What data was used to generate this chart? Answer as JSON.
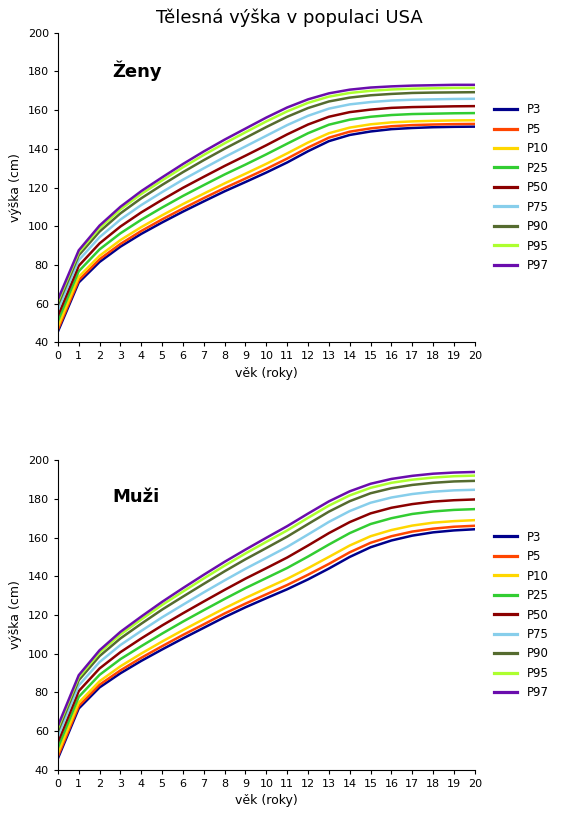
{
  "title": "Tělesná výška v populaci USA",
  "xlabel": "věk (roky)",
  "ylabel": "výška (cm)",
  "label_women": "Ženy",
  "label_men": "Muži",
  "percentile_labels": [
    "P3",
    "P5",
    "P10",
    "P25",
    "P50",
    "P75",
    "P90",
    "P95",
    "P97"
  ],
  "colors": [
    "#00008B",
    "#FF4500",
    "#FFD700",
    "#32CD32",
    "#8B0000",
    "#87CEEB",
    "#556B2F",
    "#ADFF2F",
    "#6A0DAD"
  ],
  "ylim": [
    40,
    200
  ],
  "yticks": [
    40,
    60,
    80,
    100,
    120,
    140,
    160,
    180,
    200
  ],
  "ages": [
    0,
    1,
    2,
    3,
    4,
    5,
    6,
    7,
    8,
    9,
    10,
    11,
    12,
    13,
    14,
    15,
    16,
    17,
    18,
    19,
    20
  ],
  "women_data": {
    "P3": [
      45.6,
      71.0,
      81.6,
      89.5,
      96.1,
      102.0,
      107.6,
      112.9,
      118.1,
      122.9,
      127.8,
      133.0,
      138.8,
      144.0,
      147.2,
      149.0,
      150.2,
      150.8,
      151.2,
      151.4,
      151.5
    ],
    "P5": [
      46.7,
      72.2,
      83.0,
      90.9,
      97.6,
      103.6,
      109.2,
      114.6,
      119.8,
      124.7,
      129.7,
      135.0,
      140.7,
      145.8,
      148.9,
      150.6,
      151.7,
      152.3,
      152.6,
      152.8,
      152.9
    ],
    "P10": [
      48.2,
      73.9,
      84.8,
      92.9,
      99.6,
      105.7,
      111.5,
      116.9,
      122.2,
      127.2,
      132.3,
      137.7,
      143.3,
      148.1,
      151.0,
      152.7,
      153.7,
      154.2,
      154.5,
      154.7,
      154.8
    ],
    "P25": [
      51.0,
      76.8,
      88.1,
      96.4,
      103.4,
      109.7,
      115.7,
      121.3,
      126.8,
      131.9,
      137.2,
      142.7,
      148.1,
      152.5,
      155.1,
      156.6,
      157.5,
      158.0,
      158.2,
      158.4,
      158.5
    ],
    "P50": [
      53.8,
      79.6,
      91.2,
      99.9,
      107.2,
      113.7,
      119.9,
      125.6,
      131.2,
      136.5,
      141.9,
      147.5,
      152.6,
      156.6,
      159.0,
      160.3,
      161.2,
      161.6,
      161.8,
      162.0,
      162.1
    ],
    "P75": [
      56.7,
      82.5,
      94.4,
      103.5,
      111.0,
      117.7,
      124.1,
      130.0,
      135.8,
      141.3,
      146.8,
      152.3,
      157.1,
      160.8,
      163.0,
      164.2,
      165.0,
      165.4,
      165.6,
      165.8,
      165.9
    ],
    "P90": [
      59.3,
      85.0,
      97.3,
      106.7,
      114.5,
      121.4,
      128.0,
      134.2,
      140.1,
      145.7,
      151.3,
      156.6,
      161.1,
      164.5,
      166.5,
      167.7,
      168.4,
      168.9,
      169.1,
      169.2,
      169.3
    ],
    "P95": [
      61.0,
      86.5,
      99.1,
      108.7,
      116.7,
      123.7,
      130.5,
      136.9,
      142.9,
      148.6,
      154.2,
      159.4,
      163.8,
      167.0,
      168.9,
      170.0,
      170.7,
      171.1,
      171.3,
      171.5,
      171.5
    ],
    "P97": [
      62.2,
      87.6,
      100.4,
      110.1,
      118.2,
      125.3,
      132.2,
      138.7,
      144.8,
      150.5,
      156.2,
      161.4,
      165.6,
      168.7,
      170.6,
      171.7,
      172.3,
      172.7,
      172.9,
      173.1,
      173.1
    ]
  },
  "men_data": {
    "P3": [
      45.9,
      71.7,
      82.6,
      89.9,
      96.3,
      102.2,
      107.9,
      113.4,
      118.9,
      124.0,
      128.7,
      133.3,
      138.4,
      144.0,
      150.0,
      155.0,
      158.5,
      161.0,
      162.7,
      163.7,
      164.3
    ],
    "P5": [
      47.0,
      73.0,
      84.0,
      91.4,
      97.9,
      103.9,
      109.7,
      115.2,
      120.8,
      125.9,
      130.7,
      135.5,
      140.8,
      146.4,
      152.4,
      157.3,
      160.7,
      163.1,
      164.6,
      165.6,
      166.1
    ],
    "P10": [
      48.6,
      74.7,
      85.8,
      93.5,
      100.1,
      106.3,
      112.2,
      117.9,
      123.5,
      128.8,
      133.8,
      138.7,
      144.2,
      150.0,
      155.9,
      160.7,
      163.9,
      166.2,
      167.7,
      168.5,
      169.0
    ],
    "P25": [
      51.4,
      77.7,
      89.1,
      97.2,
      103.9,
      110.4,
      116.6,
      122.5,
      128.3,
      133.9,
      139.1,
      144.3,
      150.2,
      156.4,
      162.3,
      167.0,
      170.0,
      172.2,
      173.5,
      174.3,
      174.7
    ],
    "P50": [
      54.3,
      80.7,
      92.4,
      100.8,
      107.9,
      114.6,
      120.9,
      127.0,
      133.0,
      138.8,
      144.2,
      149.7,
      155.9,
      162.3,
      168.0,
      172.5,
      175.4,
      177.3,
      178.6,
      179.3,
      179.7
    ],
    "P75": [
      57.1,
      83.6,
      95.7,
      104.5,
      111.8,
      118.8,
      125.3,
      131.7,
      137.9,
      143.9,
      149.5,
      155.2,
      161.6,
      168.1,
      173.7,
      178.0,
      180.7,
      182.5,
      183.7,
      184.4,
      184.7
    ],
    "P90": [
      59.8,
      86.3,
      98.8,
      107.9,
      115.5,
      122.8,
      129.5,
      136.1,
      142.6,
      148.8,
      154.6,
      160.5,
      167.0,
      173.4,
      178.8,
      182.9,
      185.5,
      187.2,
      188.3,
      189.0,
      189.3
    ],
    "P95": [
      61.5,
      87.8,
      100.6,
      109.9,
      117.7,
      125.2,
      132.1,
      138.9,
      145.5,
      151.8,
      157.8,
      163.7,
      170.2,
      176.5,
      181.8,
      185.7,
      188.3,
      189.9,
      191.0,
      191.7,
      192.0
    ],
    "P97": [
      62.7,
      88.9,
      101.8,
      111.3,
      119.2,
      126.8,
      133.9,
      140.8,
      147.5,
      153.8,
      159.9,
      165.9,
      172.4,
      178.7,
      183.9,
      187.8,
      190.3,
      191.9,
      193.0,
      193.6,
      193.9
    ]
  },
  "linewidth": 1.8
}
